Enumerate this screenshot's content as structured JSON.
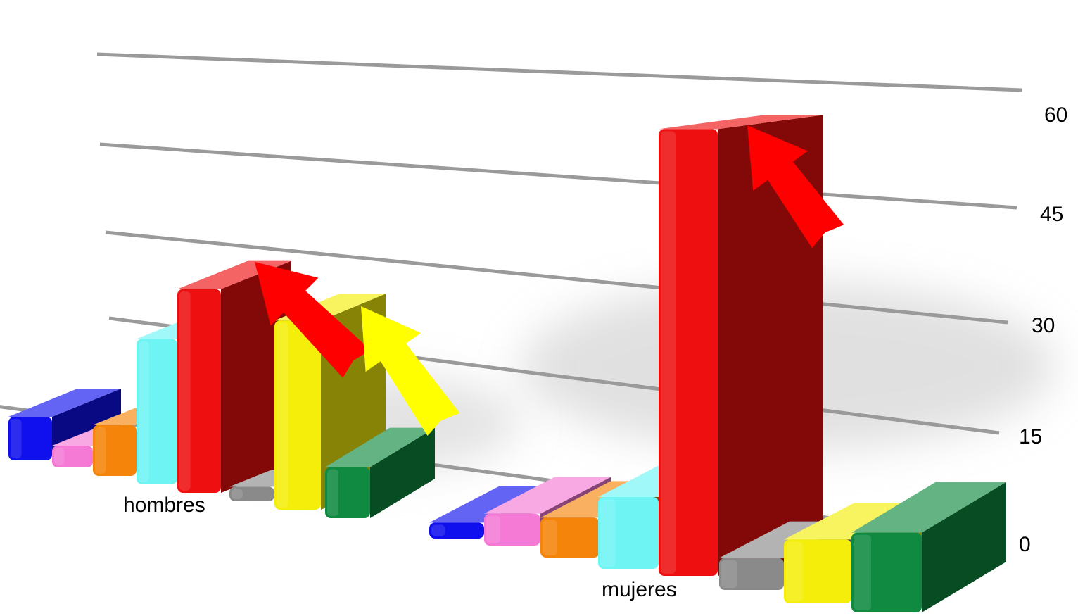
{
  "chart_data": {
    "type": "bar",
    "categories": [
      "hombres",
      "mujeres"
    ],
    "series": [
      {
        "color": "#1010ee",
        "values": [
          6,
          2
        ]
      },
      {
        "color": "#f47ad6",
        "values": [
          3,
          4
        ]
      },
      {
        "color": "#f5850a",
        "values": [
          7,
          5
        ]
      },
      {
        "color": "#6ff4f4",
        "values": [
          20,
          9
        ]
      },
      {
        "color": "#ee1010",
        "values": [
          28,
          56
        ]
      },
      {
        "color": "#8a8a8a",
        "values": [
          2,
          4
        ]
      },
      {
        "color": "#f4ee0a",
        "values": [
          26,
          8
        ]
      },
      {
        "color": "#0f8a40",
        "values": [
          7,
          10
        ]
      }
    ],
    "yticks": [
      0,
      15,
      30,
      45,
      60
    ],
    "ylim": [
      0,
      60
    ],
    "grid": true,
    "annotations": [
      {
        "shape": "arrow",
        "color": "#ff0000",
        "category": "hombres",
        "series_index": 4
      },
      {
        "shape": "arrow",
        "color": "#ffff00",
        "category": "hombres",
        "series_index": 6
      },
      {
        "shape": "arrow",
        "color": "#ff0000",
        "category": "mujeres",
        "series_index": 4
      }
    ]
  }
}
